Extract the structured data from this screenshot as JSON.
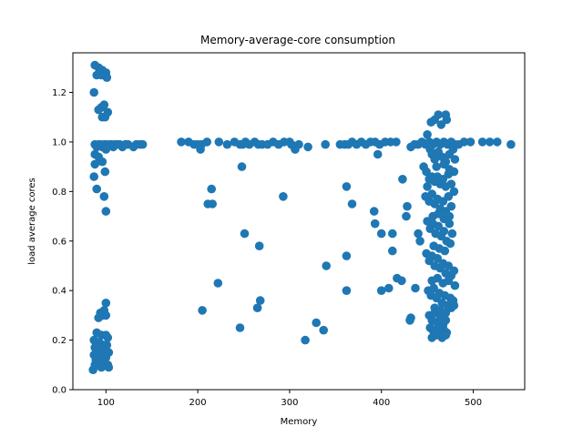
{
  "chart_data": {
    "type": "scatter",
    "title": "Memory-average-core consumption",
    "xlabel": "Memory",
    "ylabel": "load average cores",
    "xlim": [
      64,
      556
    ],
    "ylim": [
      0.0,
      1.36
    ],
    "x_ticks": [
      100,
      200,
      300,
      400,
      500
    ],
    "y_ticks": [
      0.0,
      0.2,
      0.4,
      0.6,
      0.8,
      1.0,
      1.2
    ],
    "x_tick_labels": [
      "100",
      "200",
      "300",
      "400",
      "500"
    ],
    "y_tick_labels": [
      "0.0",
      "0.2",
      "0.4",
      "0.6",
      "0.8",
      "1.0",
      "1.2"
    ],
    "grid": false,
    "legend": "none",
    "marker_color": "#1f77b4",
    "points": [
      [
        88,
        1.31
      ],
      [
        92,
        1.3
      ],
      [
        96,
        1.29
      ],
      [
        100,
        1.28
      ],
      [
        95,
        1.27
      ],
      [
        90,
        1.27
      ],
      [
        101,
        1.26
      ],
      [
        87,
        1.2
      ],
      [
        98,
        1.15
      ],
      [
        95,
        1.14
      ],
      [
        92,
        1.13
      ],
      [
        102,
        1.12
      ],
      [
        96,
        1.1
      ],
      [
        99,
        1.1
      ],
      [
        88,
        0.99
      ],
      [
        90,
        0.98
      ],
      [
        92,
        0.99
      ],
      [
        94,
        0.99
      ],
      [
        96,
        0.98
      ],
      [
        98,
        0.99
      ],
      [
        100,
        0.99
      ],
      [
        102,
        0.98
      ],
      [
        104,
        0.99
      ],
      [
        106,
        0.99
      ],
      [
        108,
        0.98
      ],
      [
        110,
        0.99
      ],
      [
        112,
        0.99
      ],
      [
        115,
        0.99
      ],
      [
        118,
        0.98
      ],
      [
        121,
        0.99
      ],
      [
        124,
        0.99
      ],
      [
        130,
        0.98
      ],
      [
        133,
        0.99
      ],
      [
        137,
        0.99
      ],
      [
        140,
        0.99
      ],
      [
        88,
        0.95
      ],
      [
        92,
        0.94
      ],
      [
        96,
        0.92
      ],
      [
        100,
        0.97
      ],
      [
        88,
        0.91
      ],
      [
        99,
        0.88
      ],
      [
        87,
        0.86
      ],
      [
        90,
        0.81
      ],
      [
        98,
        0.78
      ],
      [
        100,
        0.72
      ],
      [
        100,
        0.35
      ],
      [
        98,
        0.32
      ],
      [
        94,
        0.31
      ],
      [
        96,
        0.3
      ],
      [
        100,
        0.3
      ],
      [
        92,
        0.29
      ],
      [
        90,
        0.23
      ],
      [
        95,
        0.22
      ],
      [
        100,
        0.22
      ],
      [
        102,
        0.21
      ],
      [
        87,
        0.2
      ],
      [
        89,
        0.19
      ],
      [
        93,
        0.19
      ],
      [
        97,
        0.18
      ],
      [
        101,
        0.18
      ],
      [
        88,
        0.17
      ],
      [
        91,
        0.16
      ],
      [
        95,
        0.16
      ],
      [
        99,
        0.15
      ],
      [
        103,
        0.15
      ],
      [
        87,
        0.14
      ],
      [
        92,
        0.14
      ],
      [
        96,
        0.13
      ],
      [
        100,
        0.13
      ],
      [
        89,
        0.12
      ],
      [
        94,
        0.12
      ],
      [
        98,
        0.11
      ],
      [
        102,
        0.1
      ],
      [
        88,
        0.1
      ],
      [
        95,
        0.09
      ],
      [
        103,
        0.09
      ],
      [
        86,
        0.08
      ],
      [
        182,
        1.0
      ],
      [
        190,
        1.0
      ],
      [
        196,
        0.99
      ],
      [
        200,
        0.99
      ],
      [
        204,
        0.99
      ],
      [
        210,
        1.0
      ],
      [
        203,
        0.97
      ],
      [
        223,
        1.0
      ],
      [
        232,
        0.99
      ],
      [
        240,
        1.0
      ],
      [
        246,
        0.99
      ],
      [
        249,
        0.99
      ],
      [
        252,
        1.0
      ],
      [
        256,
        0.99
      ],
      [
        262,
        1.0
      ],
      [
        266,
        0.99
      ],
      [
        270,
        0.99
      ],
      [
        276,
        0.99
      ],
      [
        282,
        1.0
      ],
      [
        288,
        0.99
      ],
      [
        294,
        1.0
      ],
      [
        300,
        1.0
      ],
      [
        302,
        0.99
      ],
      [
        305,
        0.98
      ],
      [
        306,
        0.97
      ],
      [
        310,
        0.99
      ],
      [
        320,
        0.98
      ],
      [
        339,
        0.99
      ],
      [
        355,
        0.99
      ],
      [
        360,
        0.99
      ],
      [
        364,
        0.99
      ],
      [
        368,
        1.0
      ],
      [
        373,
        0.99
      ],
      [
        378,
        1.0
      ],
      [
        383,
        0.99
      ],
      [
        388,
        1.0
      ],
      [
        393,
        1.0
      ],
      [
        398,
        0.99
      ],
      [
        404,
        1.0
      ],
      [
        410,
        1.0
      ],
      [
        416,
        1.0
      ],
      [
        248,
        0.9
      ],
      [
        293,
        0.78
      ],
      [
        215,
        0.81
      ],
      [
        211,
        0.75
      ],
      [
        216,
        0.75
      ],
      [
        251,
        0.63
      ],
      [
        267,
        0.58
      ],
      [
        222,
        0.43
      ],
      [
        205,
        0.32
      ],
      [
        268,
        0.36
      ],
      [
        265,
        0.33
      ],
      [
        246,
        0.25
      ],
      [
        329,
        0.27
      ],
      [
        317,
        0.2
      ],
      [
        337,
        0.24
      ],
      [
        340,
        0.5
      ],
      [
        362,
        0.82
      ],
      [
        368,
        0.75
      ],
      [
        362,
        0.54
      ],
      [
        362,
        0.4
      ],
      [
        392,
        0.72
      ],
      [
        393,
        0.67
      ],
      [
        396,
        0.95
      ],
      [
        400,
        0.63
      ],
      [
        400,
        0.4
      ],
      [
        408,
        0.41
      ],
      [
        412,
        0.63
      ],
      [
        412,
        0.56
      ],
      [
        417,
        0.45
      ],
      [
        422,
        0.44
      ],
      [
        423,
        0.85
      ],
      [
        427,
        0.7
      ],
      [
        428,
        0.74
      ],
      [
        431,
        0.28
      ],
      [
        432,
        0.29
      ],
      [
        437,
        0.41
      ],
      [
        440,
        0.63
      ],
      [
        442,
        0.6
      ],
      [
        432,
        0.98
      ],
      [
        436,
        0.99
      ],
      [
        440,
        0.99
      ],
      [
        444,
        1.0
      ],
      [
        448,
        0.99
      ],
      [
        452,
        1.0
      ],
      [
        456,
        0.99
      ],
      [
        460,
        1.0
      ],
      [
        464,
        0.99
      ],
      [
        468,
        1.0
      ],
      [
        472,
        0.99
      ],
      [
        476,
        1.0
      ],
      [
        480,
        0.99
      ],
      [
        484,
        0.99
      ],
      [
        490,
        1.0
      ],
      [
        497,
        1.0
      ],
      [
        510,
        1.0
      ],
      [
        518,
        1.0
      ],
      [
        526,
        1.0
      ],
      [
        541,
        0.99
      ],
      [
        454,
        1.08
      ],
      [
        458,
        1.09
      ],
      [
        462,
        1.11
      ],
      [
        470,
        1.11
      ],
      [
        471,
        1.09
      ],
      [
        465,
        1.07
      ],
      [
        450,
        1.03
      ],
      [
        453,
        0.97
      ],
      [
        455,
        0.95
      ],
      [
        458,
        0.93
      ],
      [
        462,
        0.96
      ],
      [
        466,
        0.94
      ],
      [
        470,
        0.92
      ],
      [
        474,
        0.95
      ],
      [
        478,
        0.97
      ],
      [
        480,
        0.93
      ],
      [
        446,
        0.9
      ],
      [
        449,
        0.88
      ],
      [
        452,
        0.85
      ],
      [
        455,
        0.86
      ],
      [
        458,
        0.84
      ],
      [
        461,
        0.86
      ],
      [
        464,
        0.83
      ],
      [
        467,
        0.85
      ],
      [
        470,
        0.82
      ],
      [
        473,
        0.87
      ],
      [
        476,
        0.83
      ],
      [
        479,
        0.88
      ],
      [
        460,
        0.9
      ],
      [
        468,
        0.91
      ],
      [
        474,
        0.89
      ],
      [
        450,
        0.82
      ],
      [
        448,
        0.78
      ],
      [
        452,
        0.76
      ],
      [
        455,
        0.79
      ],
      [
        458,
        0.75
      ],
      [
        461,
        0.77
      ],
      [
        464,
        0.73
      ],
      [
        467,
        0.76
      ],
      [
        470,
        0.72
      ],
      [
        473,
        0.78
      ],
      [
        476,
        0.74
      ],
      [
        479,
        0.8
      ],
      [
        456,
        0.7
      ],
      [
        462,
        0.71
      ],
      [
        468,
        0.69
      ],
      [
        474,
        0.7
      ],
      [
        450,
        0.68
      ],
      [
        453,
        0.65
      ],
      [
        456,
        0.67
      ],
      [
        459,
        0.63
      ],
      [
        462,
        0.66
      ],
      [
        465,
        0.62
      ],
      [
        468,
        0.64
      ],
      [
        471,
        0.6
      ],
      [
        474,
        0.67
      ],
      [
        477,
        0.63
      ],
      [
        457,
        0.58
      ],
      [
        463,
        0.57
      ],
      [
        469,
        0.56
      ],
      [
        475,
        0.59
      ],
      [
        449,
        0.55
      ],
      [
        452,
        0.52
      ],
      [
        455,
        0.54
      ],
      [
        458,
        0.5
      ],
      [
        461,
        0.53
      ],
      [
        464,
        0.49
      ],
      [
        467,
        0.51
      ],
      [
        470,
        0.47
      ],
      [
        473,
        0.5
      ],
      [
        476,
        0.46
      ],
      [
        479,
        0.48
      ],
      [
        455,
        0.44
      ],
      [
        461,
        0.45
      ],
      [
        467,
        0.43
      ],
      [
        473,
        0.44
      ],
      [
        480,
        0.42
      ],
      [
        451,
        0.4
      ],
      [
        454,
        0.38
      ],
      [
        457,
        0.41
      ],
      [
        460,
        0.37
      ],
      [
        463,
        0.39
      ],
      [
        466,
        0.35
      ],
      [
        469,
        0.38
      ],
      [
        472,
        0.34
      ],
      [
        475,
        0.37
      ],
      [
        478,
        0.36
      ],
      [
        458,
        0.33
      ],
      [
        464,
        0.32
      ],
      [
        470,
        0.31
      ],
      [
        476,
        0.33
      ],
      [
        479,
        0.34
      ],
      [
        452,
        0.3
      ],
      [
        455,
        0.28
      ],
      [
        458,
        0.31
      ],
      [
        461,
        0.27
      ],
      [
        464,
        0.29
      ],
      [
        467,
        0.26
      ],
      [
        470,
        0.28
      ],
      [
        453,
        0.25
      ],
      [
        456,
        0.24
      ],
      [
        459,
        0.23
      ],
      [
        462,
        0.25
      ],
      [
        465,
        0.22
      ],
      [
        468,
        0.24
      ],
      [
        471,
        0.23
      ],
      [
        455,
        0.21
      ],
      [
        460,
        0.22
      ],
      [
        466,
        0.21
      ],
      [
        470,
        0.22
      ]
    ]
  }
}
